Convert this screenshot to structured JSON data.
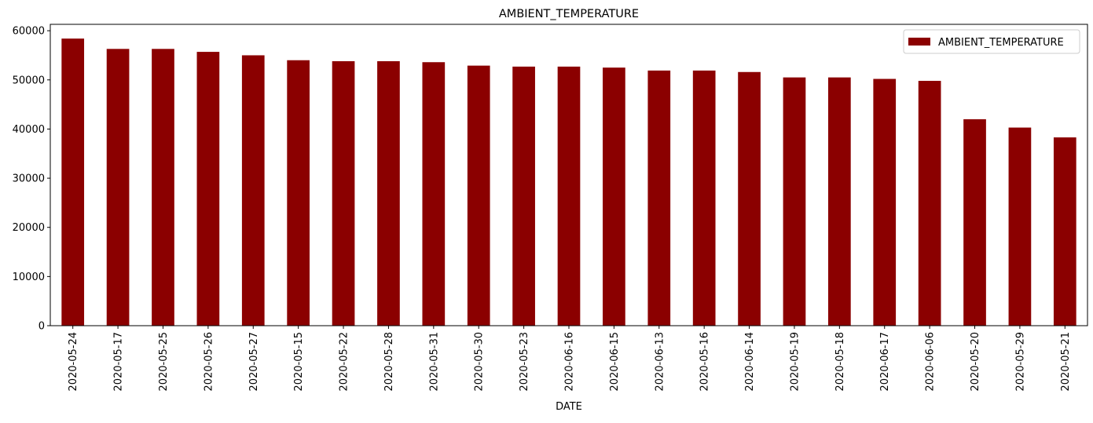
{
  "chart_data": {
    "type": "bar",
    "title": "AMBIENT_TEMPERATURE",
    "xlabel": "DATE",
    "ylabel": "",
    "categories": [
      "2020-05-24",
      "2020-05-17",
      "2020-05-25",
      "2020-05-26",
      "2020-05-27",
      "2020-05-15",
      "2020-05-22",
      "2020-05-28",
      "2020-05-31",
      "2020-05-30",
      "2020-05-23",
      "2020-06-16",
      "2020-06-15",
      "2020-06-13",
      "2020-05-16",
      "2020-06-14",
      "2020-05-19",
      "2020-05-18",
      "2020-06-17",
      "2020-06-06",
      "2020-05-20",
      "2020-05-29",
      "2020-05-21"
    ],
    "series": [
      {
        "name": "AMBIENT_TEMPERATURE",
        "color": "#8b0000",
        "values": [
          58400,
          56300,
          56300,
          55700,
          55000,
          54000,
          53800,
          53800,
          53600,
          52900,
          52700,
          52700,
          52500,
          51900,
          51900,
          51600,
          50500,
          50500,
          50200,
          49800,
          42000,
          40300,
          38300
        ]
      }
    ],
    "ylim": [
      0,
      61300
    ],
    "yticks": [
      0,
      10000,
      20000,
      30000,
      40000,
      50000,
      60000
    ],
    "grid": false,
    "legend_position": "top-right"
  }
}
